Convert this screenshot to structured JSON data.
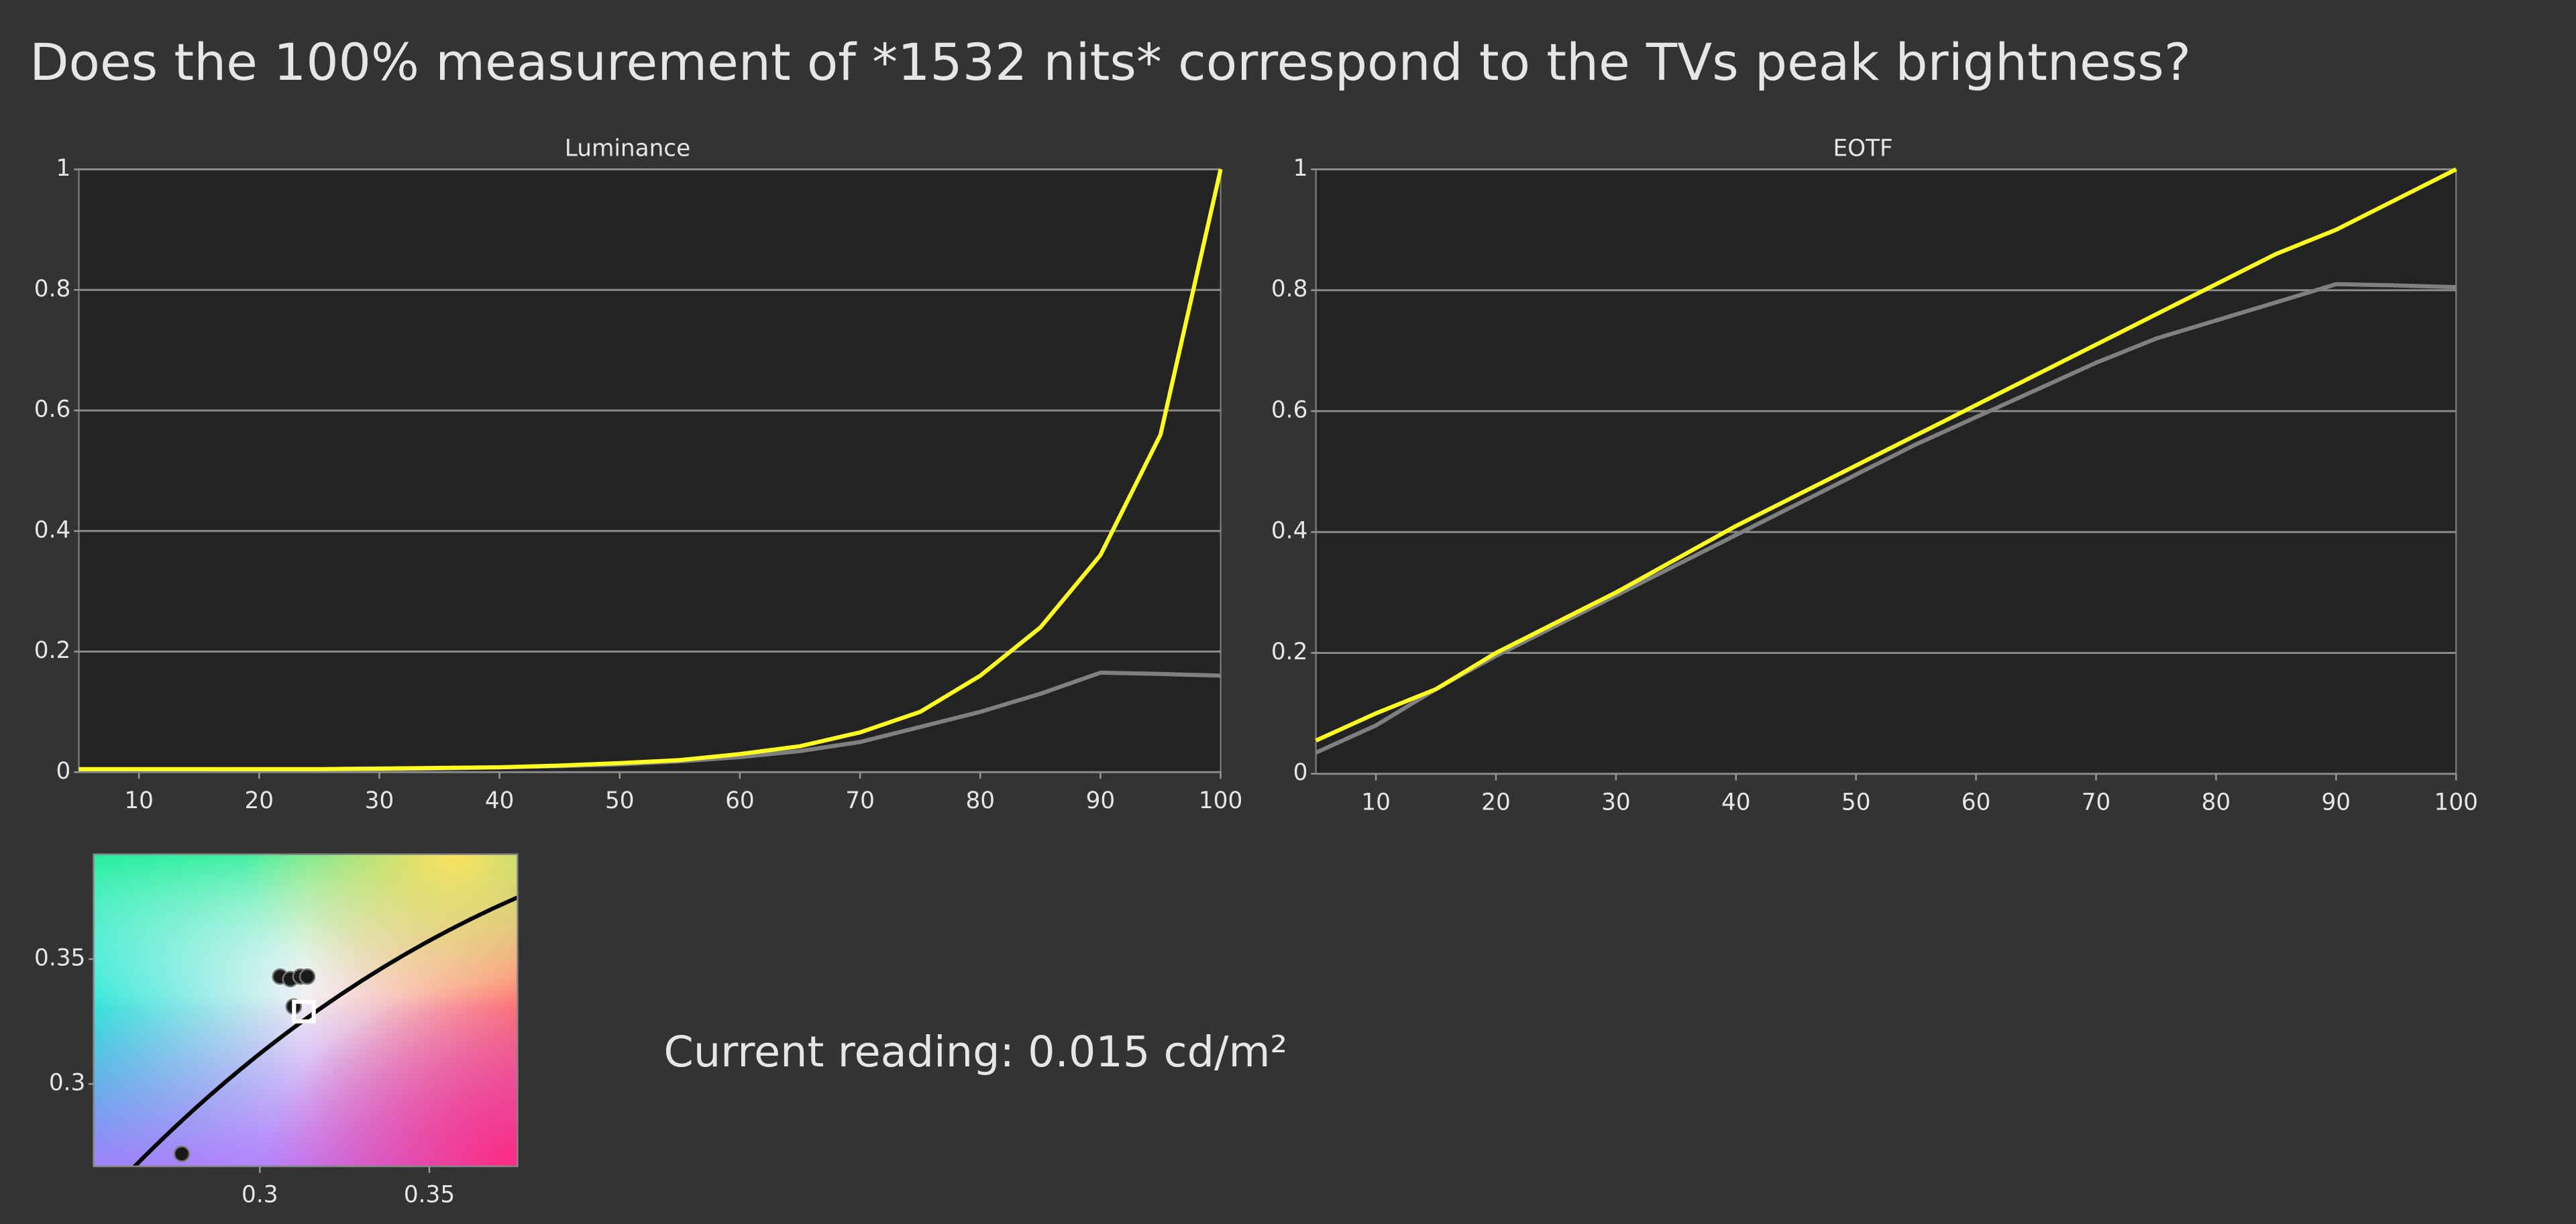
{
  "title": "Does the 100% measurement of *1532 nits* correspond to the TVs peak brightness?",
  "reading": "Current reading: 0.015 cd/m²",
  "chart_data": [
    {
      "type": "line",
      "title": "Luminance",
      "x": [
        5,
        10,
        15,
        20,
        25,
        30,
        35,
        40,
        45,
        50,
        55,
        60,
        65,
        70,
        75,
        80,
        85,
        90,
        95,
        100
      ],
      "series": [
        {
          "color": "#808080",
          "values": [
            0.003,
            0.003,
            0.003,
            0.004,
            0.004,
            0.005,
            0.006,
            0.008,
            0.01,
            0.013,
            0.018,
            0.025,
            0.035,
            0.05,
            0.075,
            0.1,
            0.13,
            0.165,
            0.163,
            0.16
          ]
        },
        {
          "color": "#ffff20",
          "values": [
            0.005,
            0.005,
            0.005,
            0.005,
            0.005,
            0.006,
            0.007,
            0.008,
            0.011,
            0.015,
            0.02,
            0.03,
            0.043,
            0.066,
            0.1,
            0.16,
            0.24,
            0.36,
            0.56,
            1
          ]
        }
      ],
      "xlim": [
        5,
        100
      ],
      "xticks": [
        10,
        20,
        30,
        40,
        50,
        60,
        70,
        80,
        90,
        100
      ],
      "ylim": [
        0,
        1
      ],
      "yticks": [
        0,
        0.2,
        0.4,
        0.6,
        0.8,
        1
      ],
      "grid": true
    },
    {
      "type": "line",
      "title": "EOTF",
      "x": [
        5,
        10,
        15,
        20,
        25,
        30,
        35,
        40,
        45,
        50,
        55,
        60,
        65,
        70,
        75,
        80,
        85,
        90,
        95,
        100
      ],
      "series": [
        {
          "color": "#808080",
          "values": [
            0.035,
            0.08,
            0.14,
            0.195,
            0.245,
            0.295,
            0.345,
            0.395,
            0.445,
            0.495,
            0.545,
            0.59,
            0.635,
            0.68,
            0.72,
            0.75,
            0.78,
            0.81,
            0.808,
            0.805
          ]
        },
        {
          "color": "#ffff20",
          "values": [
            0.055,
            0.1,
            0.14,
            0.2,
            0.25,
            0.3,
            0.355,
            0.41,
            0.46,
            0.51,
            0.56,
            0.61,
            0.66,
            0.71,
            0.76,
            0.81,
            0.86,
            0.9,
            0.95,
            1
          ]
        }
      ],
      "xlim": [
        5,
        100
      ],
      "xticks": [
        10,
        20,
        30,
        40,
        50,
        60,
        70,
        80,
        90,
        100
      ],
      "ylim": [
        0,
        1
      ],
      "yticks": [
        0,
        0.2,
        0.4,
        0.6,
        0.8,
        1
      ],
      "grid": true
    },
    {
      "type": "scatter",
      "series": [
        {
          "color": "#1a1a1a",
          "marker": "circle",
          "x": [
            0.277,
            0.306,
            0.309,
            0.312,
            0.314,
            0.31
          ],
          "values": [
            0.272,
            0.343,
            0.342,
            0.343,
            0.343,
            0.331
          ]
        },
        {
          "color": "#ffffff",
          "marker": "square",
          "x": [
            0.313
          ],
          "values": [
            0.329
          ]
        }
      ],
      "xlim": [
        0.251,
        0.376
      ],
      "xticks": [
        0.3,
        0.35
      ],
      "ylim": [
        0.267,
        0.392
      ],
      "yticks": [
        0.3,
        0.35
      ]
    }
  ]
}
